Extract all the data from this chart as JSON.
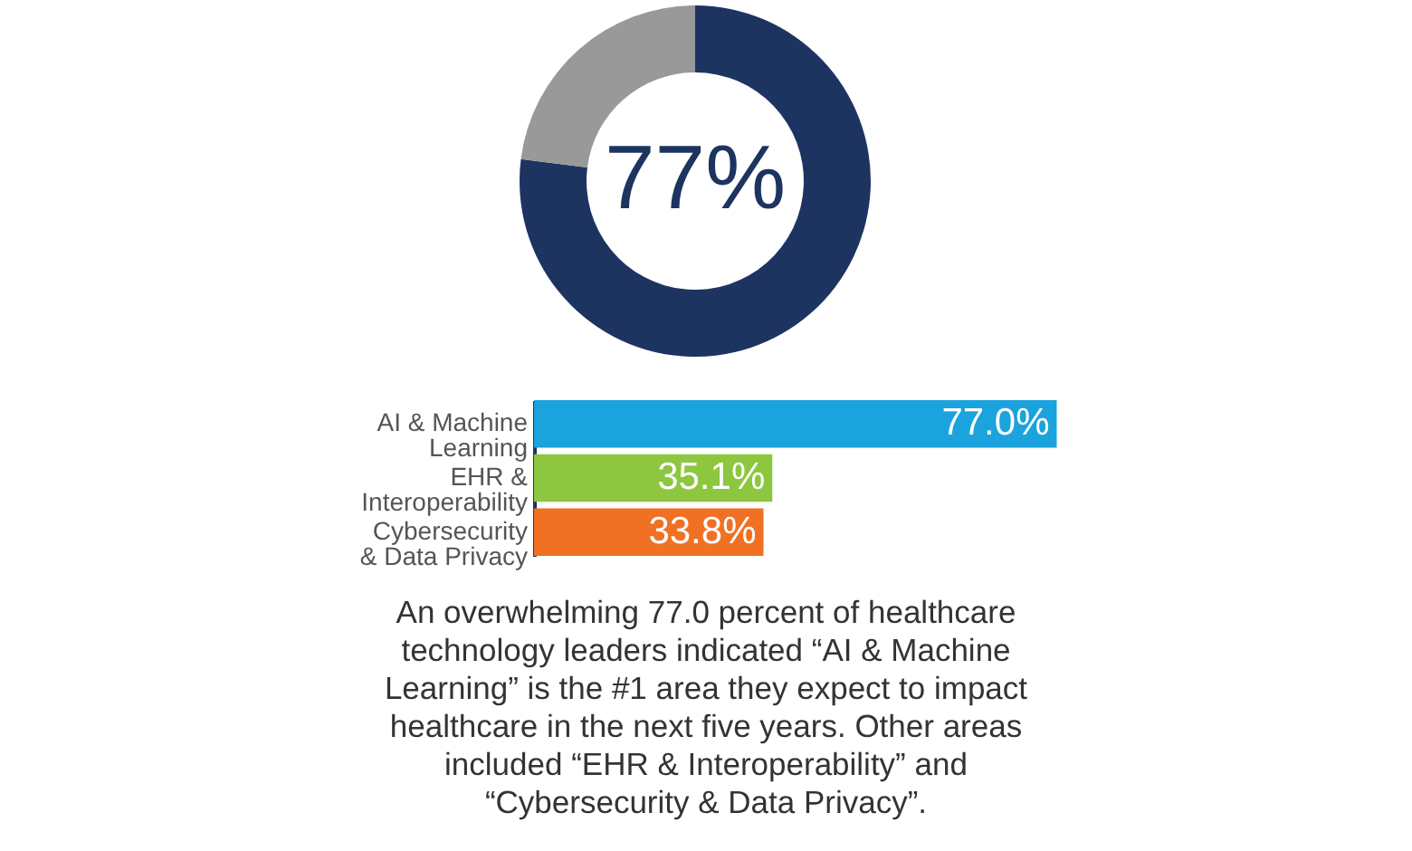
{
  "chart_data": [
    {
      "type": "donut",
      "categories": [
        null,
        null
      ],
      "values": [
        77,
        23
      ],
      "colors": [
        "#1d3461",
        "#999999"
      ],
      "annotations": [
        "77%"
      ]
    },
    {
      "type": "bar",
      "orientation": "horizontal",
      "categories": [
        "AI & Machine Learning",
        "EHR & Interoperability",
        "Cybersecurity & Data Privacy"
      ],
      "values": [
        77.0,
        35.1,
        33.8
      ],
      "colors": [
        "#1aa3dc",
        "#8dc63f",
        "#f07123"
      ],
      "value_labels": [
        "77.0%",
        "35.1%",
        "33.8%"
      ],
      "annotations": [
        "An overwhelming 77.0 percent of healthcare technology leaders indicated “AI & Machine Learning” is the #1 area they expect to impact healthcare in the next five years. Other areas included “EHR & Interoperability” and “Cybersecurity & Data Privacy”."
      ]
    }
  ]
}
